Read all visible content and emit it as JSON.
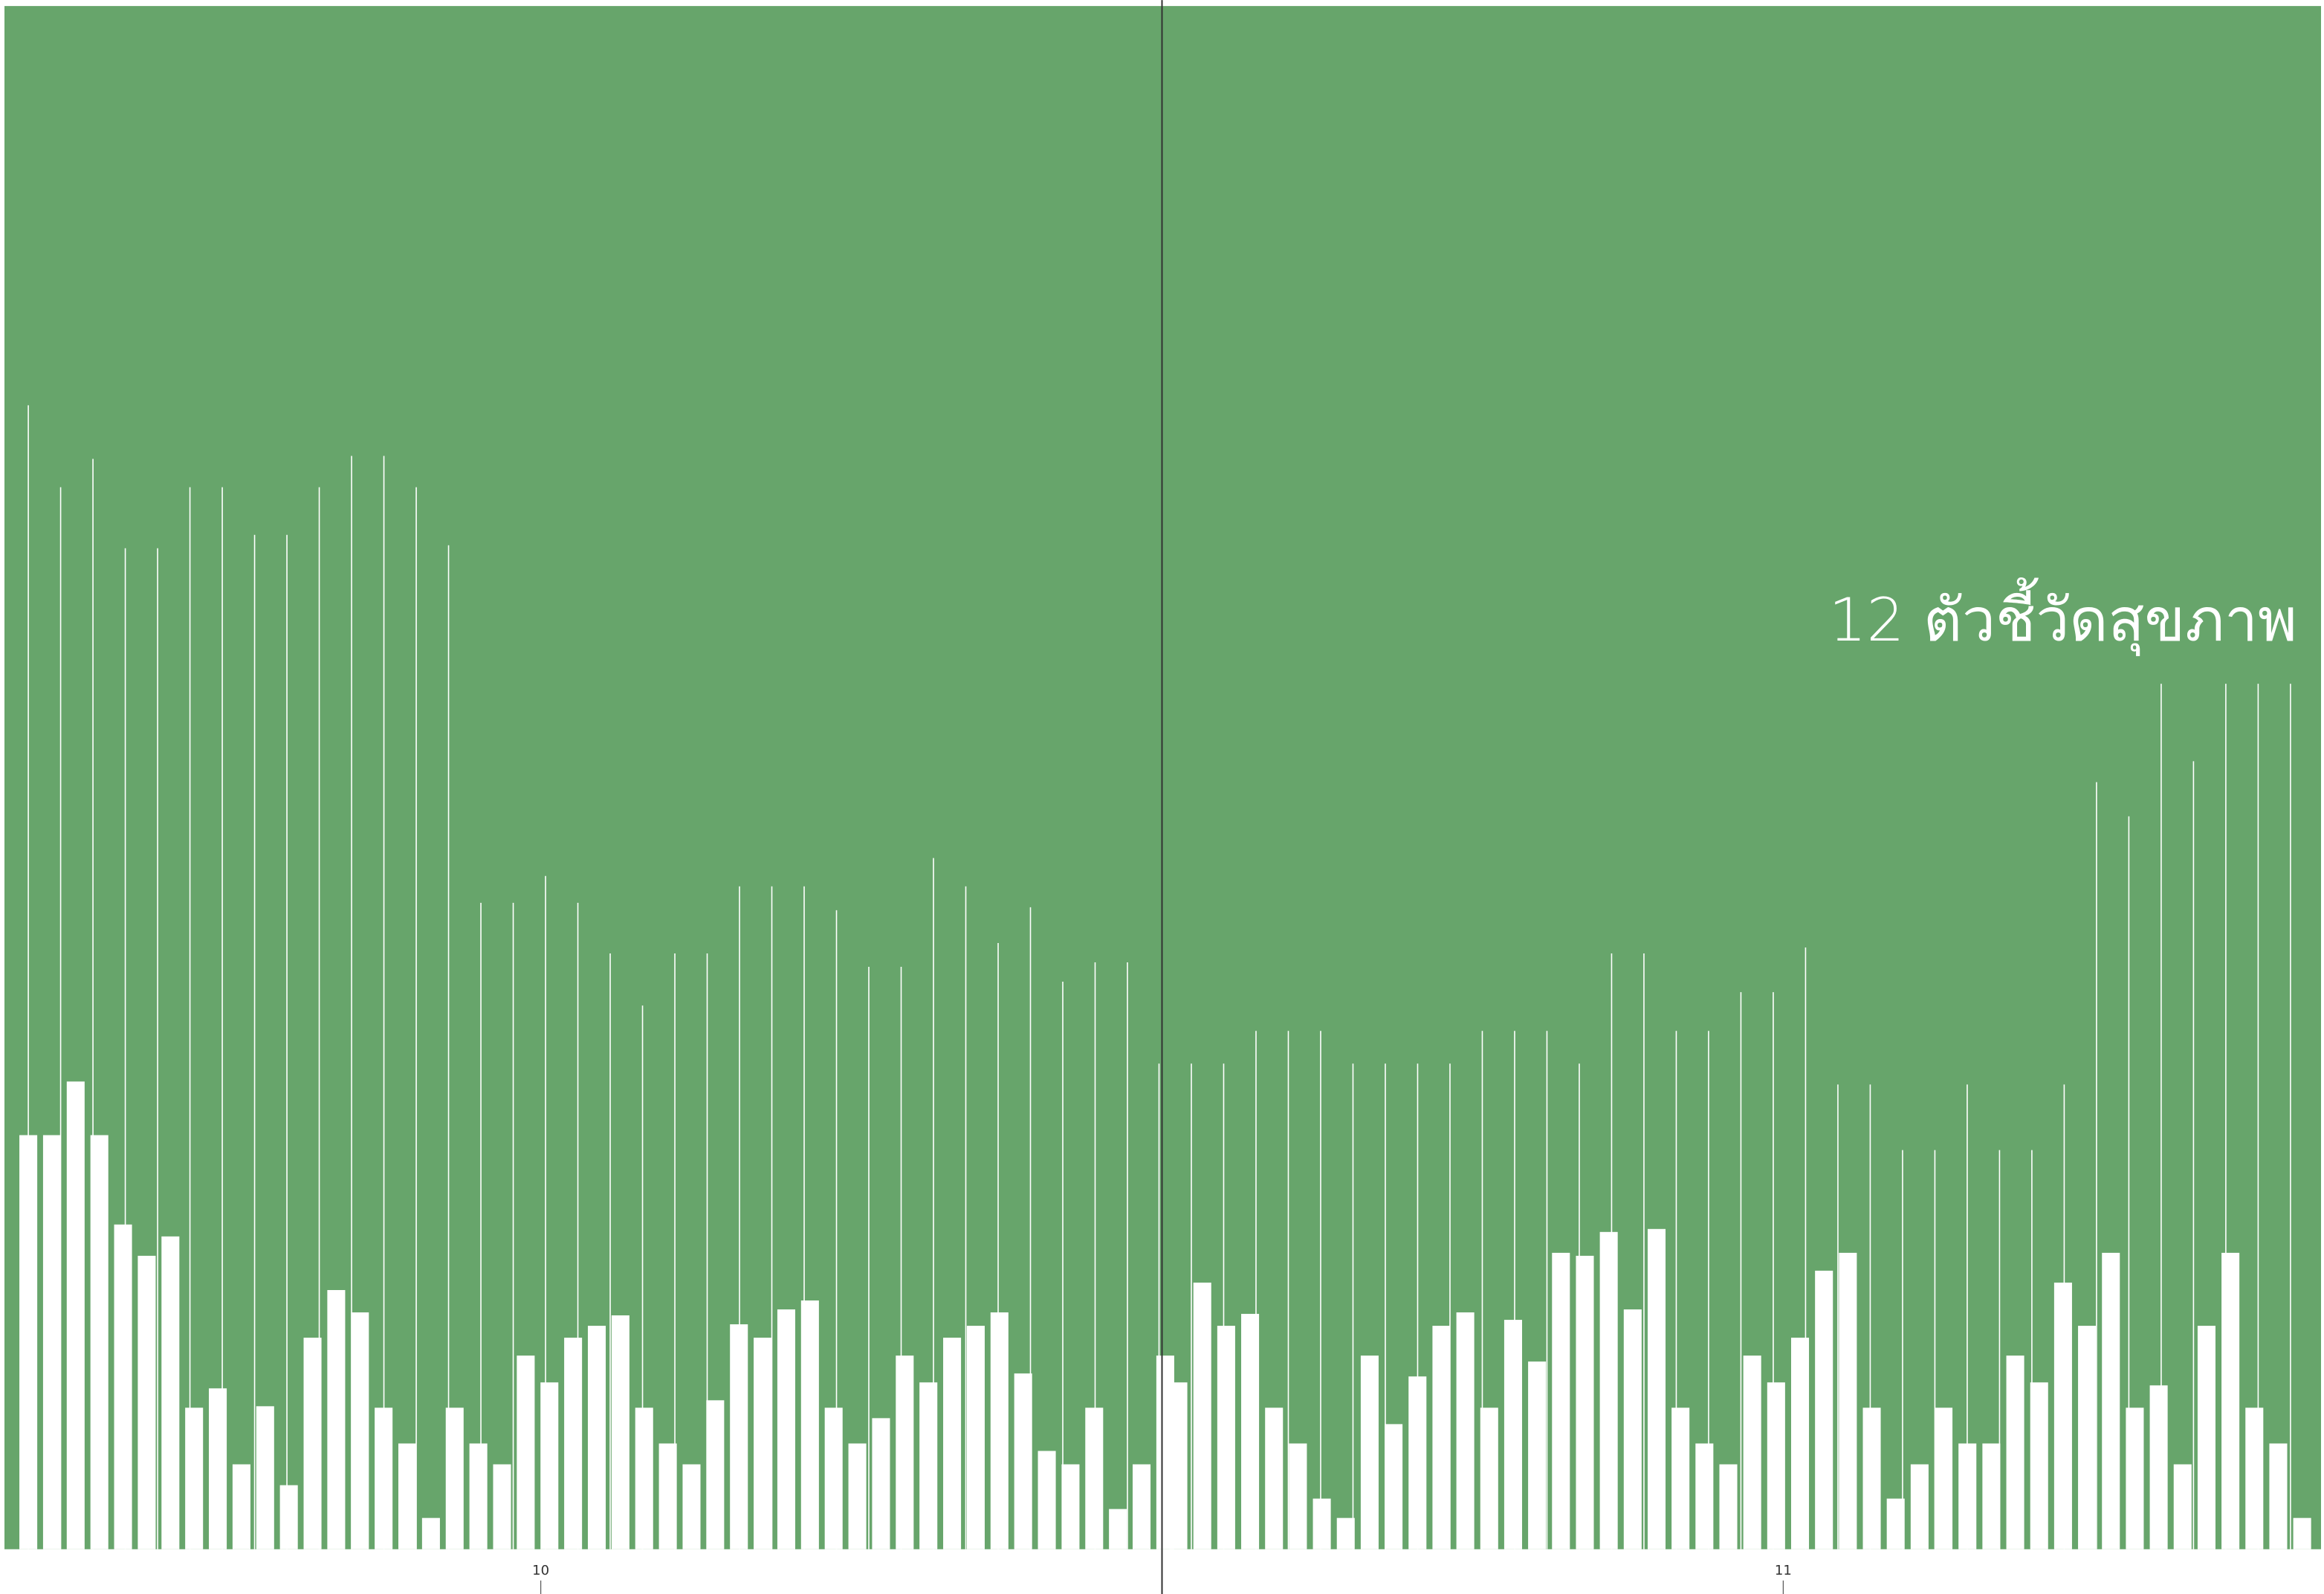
{
  "header": {
    "title": "12 ตัวชี้วัดสุขภาพ"
  },
  "pages": [
    {
      "number": "10"
    },
    {
      "number": "11"
    }
  ]
}
